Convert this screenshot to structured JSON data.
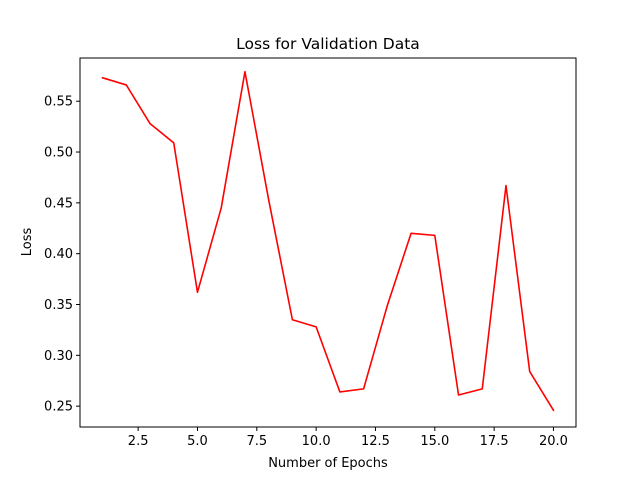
{
  "chart_data": {
    "type": "line",
    "title": "Loss for Validation Data",
    "xlabel": "Number of Epochs",
    "ylabel": "Loss",
    "xlim": [
      0.05,
      20.95
    ],
    "ylim": [
      0.2295,
      0.5925
    ],
    "grid": false,
    "legend": "none",
    "xticks": [
      2.5,
      5.0,
      7.5,
      10.0,
      12.5,
      15.0,
      17.5,
      20.0
    ],
    "xtick_labels": [
      "2.5",
      "5.0",
      "7.5",
      "10.0",
      "12.5",
      "15.0",
      "17.5",
      "20.0"
    ],
    "yticks": [
      0.25,
      0.3,
      0.35,
      0.4,
      0.45,
      0.5,
      0.55
    ],
    "ytick_labels": [
      "0.25",
      "0.30",
      "0.35",
      "0.40",
      "0.45",
      "0.50",
      "0.55"
    ],
    "series": [
      {
        "color": "#ff0000",
        "x": [
          1,
          2,
          3,
          4,
          5,
          6,
          7,
          8,
          9,
          10,
          11,
          12,
          13,
          14,
          15,
          16,
          17,
          18,
          19,
          20
        ],
        "y": [
          0.573,
          0.566,
          0.528,
          0.509,
          0.362,
          0.445,
          0.579,
          0.453,
          0.335,
          0.328,
          0.264,
          0.267,
          0.349,
          0.42,
          0.418,
          0.261,
          0.267,
          0.467,
          0.284,
          0.246
        ]
      }
    ]
  }
}
